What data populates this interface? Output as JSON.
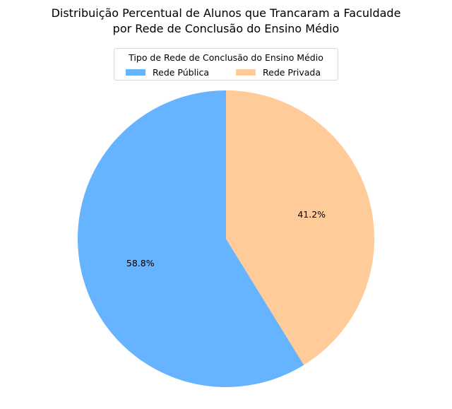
{
  "chart_data": {
    "type": "pie",
    "title_lines": [
      "Distribuição Percentual de Alunos que Trancaram a Faculdade",
      "por Rede de Conclusão do Ensino Médio"
    ],
    "legend": {
      "title": "Tipo de Rede de Conclusão do Ensino Médio",
      "placement": "top-center"
    },
    "categories": [
      "Rede Pública",
      "Rede Privada"
    ],
    "values": [
      58.8,
      41.2
    ],
    "labels": [
      "58.8%",
      "41.2%"
    ],
    "colors": [
      "#66b3ff",
      "#ffcc99"
    ],
    "start_angle_deg": 90,
    "direction": "counterclockwise"
  }
}
